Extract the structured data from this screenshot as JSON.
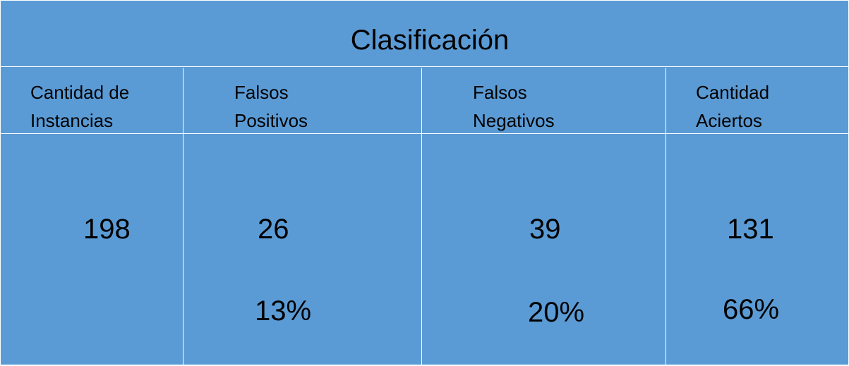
{
  "table": {
    "title": "Clasificación",
    "headers": [
      "Cantidad de\nInstancias",
      "Falsos\nPositivos",
      "Falsos\nNegativos",
      "Cantidad\nAciertos"
    ],
    "counts": [
      "198",
      "26",
      "39",
      "131"
    ],
    "percents": [
      "",
      "13%",
      "20%",
      "66%"
    ]
  },
  "colors": {
    "cell_background": "#5b9bd5",
    "grid_lines": "#ffffff",
    "text": "#000000"
  }
}
